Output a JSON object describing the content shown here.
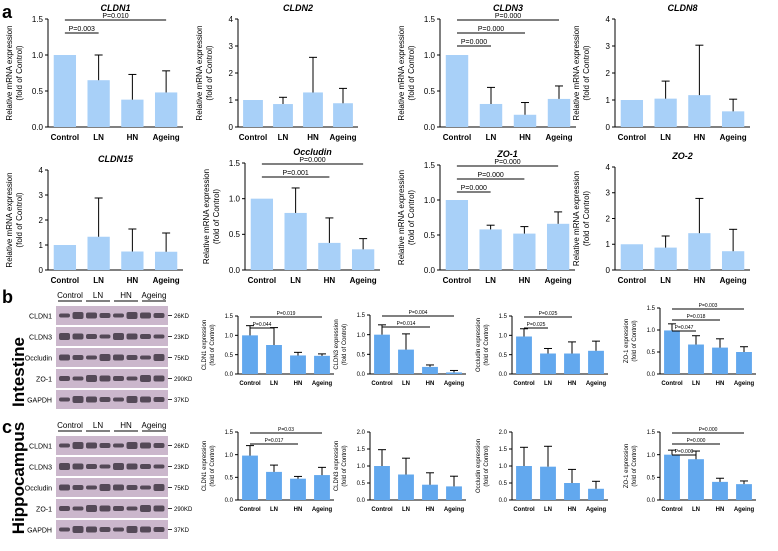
{
  "panel_labels": {
    "a": "a",
    "b": "b",
    "c": "c"
  },
  "row_labels": {
    "intestine": "Intestine",
    "hippocampus": "Hippocampus"
  },
  "colors": {
    "bar_a": "#a8d0f8",
    "bar_bc": "#62a8ee",
    "blot_bg": "#cbb7cc",
    "band": "#2c2430"
  },
  "blots": [
    {
      "id": "intestine",
      "groups": [
        "Control",
        "LN",
        "HN",
        "Ageing"
      ],
      "rows": [
        {
          "label": "CLDN1",
          "size": "26KD"
        },
        {
          "label": "CLDN3",
          "size": "23KD"
        },
        {
          "label": "Occludin",
          "size": "75KD"
        },
        {
          "label": "ZO-1",
          "size": "290KD"
        },
        {
          "label": "GAPDH",
          "size": "37KD"
        }
      ]
    },
    {
      "id": "hippocampus",
      "groups": [
        "Control",
        "LN",
        "HN",
        "Ageing"
      ],
      "rows": [
        {
          "label": "CLDN1",
          "size": "26KD"
        },
        {
          "label": "CLDN3",
          "size": "23KD"
        },
        {
          "label": "Occludin",
          "size": "75KD"
        },
        {
          "label": "ZO-1",
          "size": "290KD"
        },
        {
          "label": "GAPDH",
          "size": "37KD"
        }
      ]
    }
  ],
  "chart_data": [
    {
      "id": "a-cldn1",
      "type": "bar",
      "title": "CLDN1",
      "categories": [
        "Control",
        "LN",
        "HN",
        "Ageing"
      ],
      "values": [
        1.0,
        0.65,
        0.38,
        0.48
      ],
      "errors": [
        0,
        0.35,
        0.35,
        0.3
      ],
      "ylim": [
        0,
        1.5
      ],
      "yticks": [
        "0.0",
        "0.5",
        "1.0",
        "1.5"
      ],
      "ylabel": [
        "Relative mRNA expression",
        "(fold of Control)"
      ],
      "significance": [
        {
          "from": 0,
          "to": 1,
          "label": "P=0.003"
        },
        {
          "from": 0,
          "to": 3,
          "label": "P=0.010"
        }
      ]
    },
    {
      "id": "a-cldn2",
      "type": "bar",
      "title": "CLDN2",
      "categories": [
        "Control",
        "LN",
        "HN",
        "Ageing"
      ],
      "values": [
        1.0,
        0.85,
        1.28,
        0.88
      ],
      "errors": [
        0,
        0.25,
        1.3,
        0.55
      ],
      "ylim": [
        0,
        4
      ],
      "yticks": [
        "0",
        "1",
        "2",
        "3",
        "4"
      ],
      "ylabel": [
        "Relative mRNA expression",
        "(fold of Control)"
      ],
      "significance": []
    },
    {
      "id": "a-cldn3",
      "type": "bar",
      "title": "CLDN3",
      "categories": [
        "Control",
        "LN",
        "HN",
        "Ageing"
      ],
      "values": [
        1.0,
        0.32,
        0.17,
        0.39
      ],
      "errors": [
        0,
        0.23,
        0.17,
        0.18
      ],
      "ylim": [
        0,
        1.5
      ],
      "yticks": [
        "0.0",
        "0.5",
        "1.0",
        "1.5"
      ],
      "ylabel": [
        "Relative mRNA expression",
        "(fold of Control)"
      ],
      "significance": [
        {
          "from": 0,
          "to": 1,
          "label": "P=0.000"
        },
        {
          "from": 0,
          "to": 2,
          "label": "P=0.000"
        },
        {
          "from": 0,
          "to": 3,
          "label": "P=0.000"
        }
      ]
    },
    {
      "id": "a-cldn8",
      "type": "bar",
      "title": "CLDN8",
      "categories": [
        "Control",
        "LN",
        "HN",
        "Ageing"
      ],
      "values": [
        1.0,
        1.05,
        1.18,
        0.58
      ],
      "errors": [
        0,
        0.65,
        1.85,
        0.45
      ],
      "ylim": [
        0,
        4
      ],
      "yticks": [
        "0",
        "1",
        "2",
        "3",
        "4"
      ],
      "ylabel": [
        "Relative mRNA expression",
        "(fold of Control)"
      ],
      "significance": []
    },
    {
      "id": "a-cldn15",
      "type": "bar",
      "title": "CLDN15",
      "categories": [
        "Control",
        "LN",
        "HN",
        "Ageing"
      ],
      "values": [
        1.0,
        1.33,
        0.74,
        0.73
      ],
      "errors": [
        0,
        1.55,
        0.9,
        0.75
      ],
      "ylim": [
        0,
        4
      ],
      "yticks": [
        "0",
        "1",
        "2",
        "3",
        "4"
      ],
      "ylabel": [
        "Relative mRNA expression",
        "(fold of Control)"
      ],
      "significance": []
    },
    {
      "id": "a-occludin",
      "type": "bar",
      "title": "Occludin",
      "categories": [
        "Control",
        "LN",
        "HN",
        "Ageing"
      ],
      "values": [
        1.0,
        0.8,
        0.38,
        0.29
      ],
      "errors": [
        0,
        0.35,
        0.35,
        0.15
      ],
      "ylim": [
        0,
        1.5
      ],
      "yticks": [
        "0.0",
        "0.5",
        "1.0",
        "1.5"
      ],
      "ylabel": [
        "Relative mRNA expression",
        "(fold of Control)"
      ],
      "significance": [
        {
          "from": 0,
          "to": 2,
          "label": "P=0.001"
        },
        {
          "from": 0,
          "to": 3,
          "label": "P=0.000"
        }
      ]
    },
    {
      "id": "a-zo1",
      "type": "bar",
      "title": "ZO-1",
      "categories": [
        "Control",
        "LN",
        "HN",
        "Ageing"
      ],
      "values": [
        1.0,
        0.58,
        0.52,
        0.66
      ],
      "errors": [
        0,
        0.06,
        0.1,
        0.17
      ],
      "ylim": [
        0,
        1.5
      ],
      "yticks": [
        "0.0",
        "0.5",
        "1.0",
        "1.5"
      ],
      "ylabel": [
        "Relative mRNA expression",
        "(fold of Control)"
      ],
      "significance": [
        {
          "from": 0,
          "to": 1,
          "label": "P=0.000"
        },
        {
          "from": 0,
          "to": 2,
          "label": "P=0.000"
        },
        {
          "from": 0,
          "to": 3,
          "label": "P=0.000"
        }
      ]
    },
    {
      "id": "a-zo2",
      "type": "bar",
      "title": "ZO-2",
      "categories": [
        "Control",
        "LN",
        "HN",
        "Ageing"
      ],
      "values": [
        1.0,
        0.87,
        1.43,
        0.73
      ],
      "errors": [
        0,
        0.45,
        1.35,
        0.85
      ],
      "ylim": [
        0,
        4
      ],
      "yticks": [
        "0",
        "1",
        "2",
        "3",
        "4"
      ],
      "ylabel": [
        "Relative mRNA expression",
        "(fold of Control)"
      ],
      "significance": []
    },
    {
      "id": "b-cldn1",
      "type": "bar",
      "title": "",
      "categories": [
        "Control",
        "LN",
        "HN",
        "Ageing"
      ],
      "values": [
        1.0,
        0.75,
        0.48,
        0.47
      ],
      "errors": [
        0.25,
        0.45,
        0.08,
        0.05
      ],
      "ylim": [
        0,
        1.5
      ],
      "yticks": [
        "0.0",
        "0.5",
        "1.0",
        "1.5"
      ],
      "ylabel": [
        "CLDN1 expression",
        "(fold of Control)"
      ],
      "significance": [
        {
          "from": 0,
          "to": 1,
          "label": "P=0.044"
        },
        {
          "from": 0,
          "to": 3,
          "label": "P=0.019"
        }
      ]
    },
    {
      "id": "b-cldn3",
      "type": "bar",
      "title": "",
      "categories": [
        "Control",
        "LN",
        "HN",
        "Ageing"
      ],
      "values": [
        1.0,
        0.62,
        0.18,
        0.04
      ],
      "errors": [
        0.25,
        0.4,
        0.05,
        0.05
      ],
      "ylim": [
        0,
        1.5
      ],
      "yticks": [
        "0.0",
        "0.5",
        "1.0",
        "1.5"
      ],
      "ylabel": [
        "CLDN3 expression",
        "(fold of Control)"
      ],
      "significance": [
        {
          "from": 0,
          "to": 2,
          "label": "P=0.014"
        },
        {
          "from": 0,
          "to": 3,
          "label": "P=0.004"
        }
      ]
    },
    {
      "id": "b-occludin",
      "type": "bar",
      "title": "",
      "categories": [
        "Control",
        "LN",
        "HN",
        "Ageing"
      ],
      "values": [
        0.97,
        0.53,
        0.53,
        0.6
      ],
      "errors": [
        0.2,
        0.13,
        0.3,
        0.25
      ],
      "ylim": [
        0,
        1.5
      ],
      "yticks": [
        "0.0",
        "0.5",
        "1.0",
        "1.5"
      ],
      "ylabel": [
        "Occludin expression",
        "(fold of Control)"
      ],
      "significance": [
        {
          "from": 0,
          "to": 1,
          "label": "P=0.025"
        },
        {
          "from": 0,
          "to": 2,
          "label": "P=0.025"
        }
      ]
    },
    {
      "id": "b-zo1",
      "type": "bar",
      "title": "",
      "categories": [
        "Control",
        "LN",
        "HN",
        "Ageing"
      ],
      "values": [
        0.99,
        0.67,
        0.6,
        0.5
      ],
      "errors": [
        0.15,
        0.2,
        0.2,
        0.12
      ],
      "ylim": [
        0,
        1.5
      ],
      "yticks": [
        "0.0",
        "0.5",
        "1.0",
        "1.5"
      ],
      "ylabel": [
        "ZO-1 expression",
        "(fold of Control)"
      ],
      "significance": [
        {
          "from": 0,
          "to": 1,
          "label": "P=0.047"
        },
        {
          "from": 0,
          "to": 2,
          "label": "P=0.018"
        },
        {
          "from": 0,
          "to": 3,
          "label": "P=0.003"
        }
      ]
    },
    {
      "id": "c-cldn1",
      "type": "bar",
      "title": "",
      "categories": [
        "Control",
        "LN",
        "HN",
        "Ageing"
      ],
      "values": [
        0.98,
        0.62,
        0.47,
        0.55
      ],
      "errors": [
        0.22,
        0.15,
        0.05,
        0.17
      ],
      "ylim": [
        0,
        1.5
      ],
      "yticks": [
        "0.0",
        "0.5",
        "1.0",
        "1.5"
      ],
      "ylabel": [
        "CLDN1 expression",
        "(fold of Control)"
      ],
      "significance": [
        {
          "from": 0,
          "to": 2,
          "label": "P=0.017"
        },
        {
          "from": 0,
          "to": 3,
          "label": "P=0.03"
        }
      ]
    },
    {
      "id": "c-cldn3",
      "type": "bar",
      "title": "",
      "categories": [
        "Control",
        "LN",
        "HN",
        "Ageing"
      ],
      "values": [
        1.0,
        0.75,
        0.45,
        0.4
      ],
      "errors": [
        0.48,
        0.48,
        0.35,
        0.3
      ],
      "ylim": [
        0,
        2.0
      ],
      "yticks": [
        "0.0",
        "0.5",
        "1.0",
        "1.5",
        "2.0"
      ],
      "ylabel": [
        "CLDN3 expression",
        "(fold of Control)"
      ],
      "significance": []
    },
    {
      "id": "c-occludin",
      "type": "bar",
      "title": "",
      "categories": [
        "Control",
        "LN",
        "HN",
        "Ageing"
      ],
      "values": [
        1.0,
        0.98,
        0.5,
        0.33
      ],
      "errors": [
        0.55,
        0.6,
        0.4,
        0.22
      ],
      "ylim": [
        0,
        2.0
      ],
      "yticks": [
        "0.0",
        "0.5",
        "1.0",
        "1.5",
        "2.0"
      ],
      "ylabel": [
        "Occludin expression",
        "(fold of Control)"
      ],
      "significance": []
    },
    {
      "id": "c-zo1",
      "type": "bar",
      "title": "",
      "categories": [
        "Control",
        "LN",
        "HN",
        "Ageing"
      ],
      "values": [
        1.0,
        0.9,
        0.4,
        0.35
      ],
      "errors": [
        0.1,
        0.18,
        0.08,
        0.07
      ],
      "ylim": [
        0,
        1.5
      ],
      "yticks": [
        "0.0",
        "0.5",
        "1.0",
        "1.5"
      ],
      "ylabel": [
        "ZO-1 expression",
        "(fold of Control)"
      ],
      "significance": [
        {
          "from": 0,
          "to": 1,
          "label": "P=0.000"
        },
        {
          "from": 0,
          "to": 2,
          "label": "P=0.000"
        },
        {
          "from": 0,
          "to": 3,
          "label": "P=0.000"
        }
      ]
    }
  ]
}
